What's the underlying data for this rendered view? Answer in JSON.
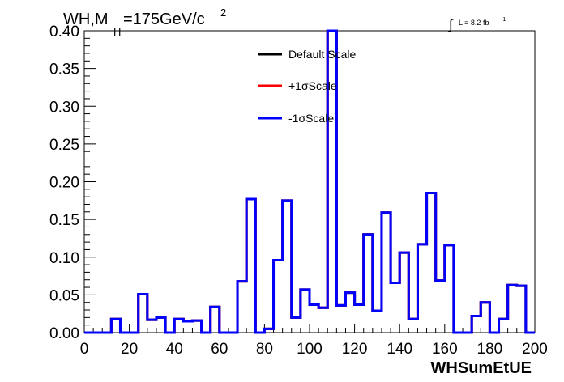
{
  "chart_data": {
    "type": "step-histogram",
    "title": {
      "main": "WH,M",
      "sub": "H",
      "rest": "=175GeV/c",
      "sup": "2"
    },
    "lumi": {
      "symbol": "∫",
      "text": "L = 8.2 fb",
      "sup": "-1"
    },
    "xlabel": "WHSumEtUE",
    "ylabel": "",
    "xlim": [
      0,
      200
    ],
    "ylim": [
      0,
      0.4
    ],
    "xticks": [
      "0",
      "20",
      "40",
      "60",
      "80",
      "100",
      "120",
      "140",
      "160",
      "180",
      "200"
    ],
    "yticks": [
      "0.00",
      "0.05",
      "0.10",
      "0.15",
      "0.20",
      "0.25",
      "0.30",
      "0.35",
      "0.40"
    ],
    "bin_width": 4,
    "x_start": 0,
    "legend_position": "top-center",
    "series": [
      {
        "name": "Default Scale",
        "color": "#000000"
      },
      {
        "name": "+1σScale",
        "color": "#ff0000"
      },
      {
        "name": "-1σScale",
        "color": "#0000ff"
      }
    ],
    "values": [
      0,
      0,
      0,
      0.018,
      0,
      0,
      0.051,
      0.017,
      0.02,
      0,
      0.018,
      0.015,
      0.016,
      0,
      0.034,
      0,
      0,
      0.068,
      0.177,
      0,
      0.005,
      0.096,
      0.175,
      0.02,
      0.057,
      0.037,
      0.033,
      0.4,
      0.036,
      0.053,
      0.037,
      0.13,
      0.029,
      0.159,
      0.066,
      0.106,
      0.018,
      0.117,
      0.185,
      0.069,
      0.116,
      0,
      0,
      0.022,
      0.04,
      0,
      0.018,
      0.063,
      0.062,
      0
    ]
  }
}
